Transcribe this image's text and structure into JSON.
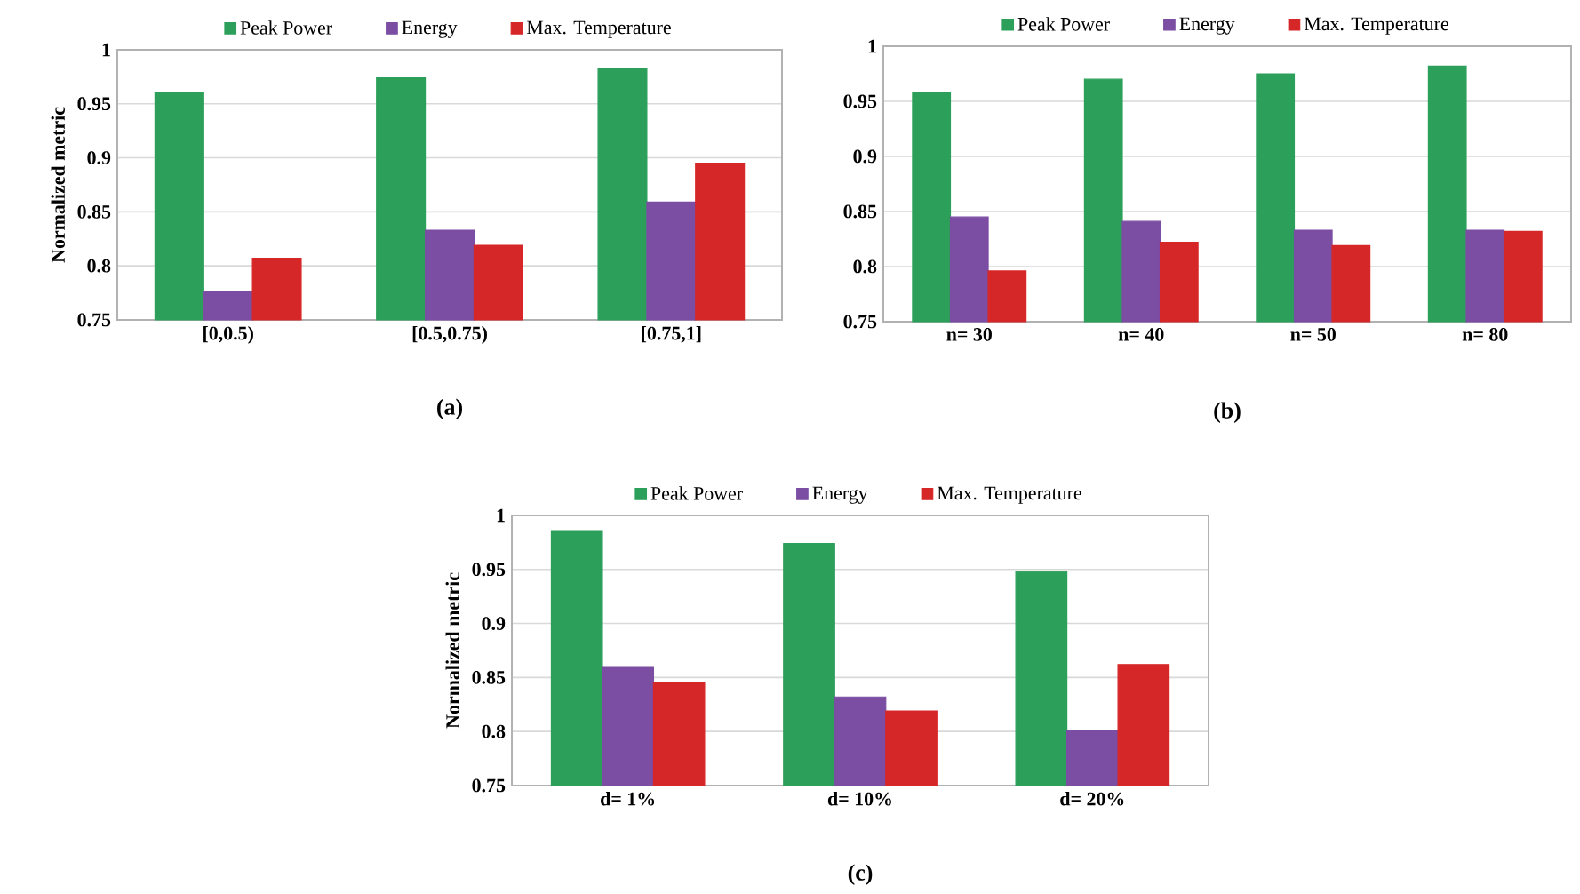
{
  "chart_data": [
    {
      "type": "bar",
      "ylabel": "Normalized metric",
      "categories": [
        "[0,0.5)",
        "[0.5,0.75)",
        "[0.75,1]"
      ],
      "series": [
        {
          "name": "Peak Power",
          "color": "#2ca05a",
          "values": [
            0.96,
            0.974,
            0.983
          ]
        },
        {
          "name": "Energy",
          "color": "#7b4ea3",
          "values": [
            0.776,
            0.833,
            0.859
          ]
        },
        {
          "name": "Max. Temperature",
          "color": "#d62728",
          "values": [
            0.807,
            0.819,
            0.895
          ]
        }
      ],
      "ylim": [
        0.75,
        1
      ],
      "yticks": [
        0.75,
        0.8,
        0.85,
        0.9,
        0.95,
        1
      ],
      "grid": "y",
      "legend": "top",
      "annotations": [
        "(a)"
      ]
    },
    {
      "type": "bar",
      "categories": [
        "n= 30",
        "n= 40",
        "n= 50",
        "n= 80"
      ],
      "series": [
        {
          "name": "Peak Power",
          "color": "#2ca05a",
          "values": [
            0.958,
            0.97,
            0.975,
            0.982
          ]
        },
        {
          "name": "Energy",
          "color": "#7b4ea3",
          "values": [
            0.845,
            0.841,
            0.833,
            0.833
          ]
        },
        {
          "name": "Max. Temperature",
          "color": "#d62728",
          "values": [
            0.796,
            0.822,
            0.819,
            0.832
          ]
        }
      ],
      "ylim": [
        0.75,
        1
      ],
      "yticks": [
        0.75,
        0.8,
        0.85,
        0.9,
        0.95,
        1
      ],
      "grid": "y",
      "legend": "top",
      "annotations": [
        "(b)"
      ]
    },
    {
      "type": "bar",
      "ylabel": "Normalized metric",
      "categories": [
        "d= 1%",
        "d= 10%",
        "d= 20%"
      ],
      "series": [
        {
          "name": "Peak Power",
          "color": "#2ca05a",
          "values": [
            0.986,
            0.974,
            0.948
          ]
        },
        {
          "name": "Energy",
          "color": "#7b4ea3",
          "values": [
            0.86,
            0.832,
            0.801
          ]
        },
        {
          "name": "Max. Temperature",
          "color": "#d62728",
          "values": [
            0.845,
            0.819,
            0.862
          ]
        }
      ],
      "ylim": [
        0.75,
        1
      ],
      "yticks": [
        0.75,
        0.8,
        0.85,
        0.9,
        0.95,
        1
      ],
      "grid": "y",
      "legend": "top",
      "annotations": [
        "(c)"
      ]
    }
  ]
}
